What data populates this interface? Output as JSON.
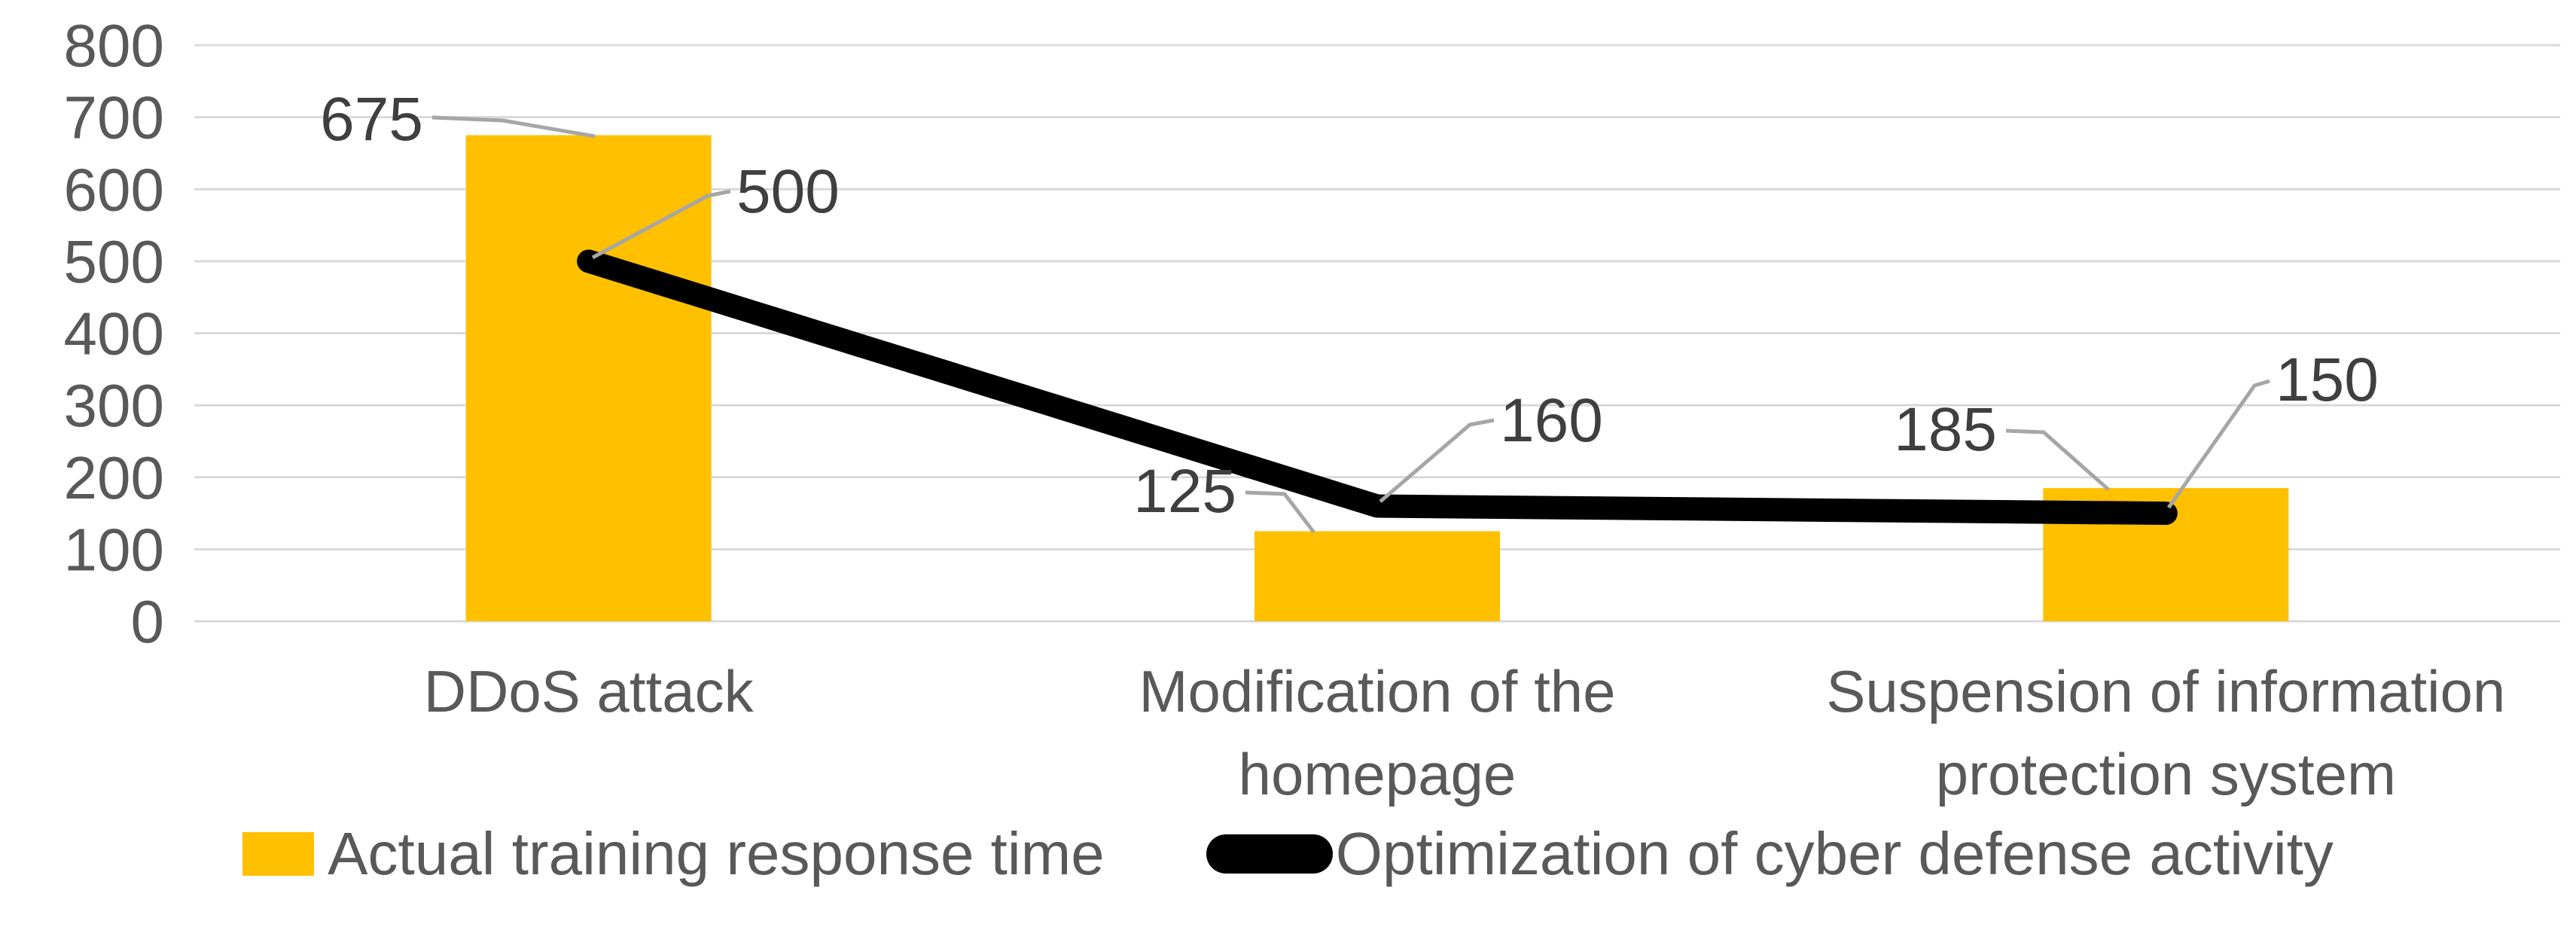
{
  "chart_data": {
    "type": "combo-bar-line",
    "title": "",
    "xlabel": "",
    "ylabel": "",
    "categories": [
      "DDoS attack",
      "Modification of the homepage",
      "Suspension of information protection system"
    ],
    "category_label_lines": [
      [
        "DDoS attack"
      ],
      [
        "Modification of the",
        "homepage"
      ],
      [
        "Suspension of information",
        "protection system"
      ]
    ],
    "series": [
      {
        "name": "Actual training response time",
        "type": "bar",
        "color": "#FFC000",
        "values": [
          675,
          125,
          185
        ]
      },
      {
        "name": "Optimization of cyber defense activity",
        "type": "line",
        "color": "#000000",
        "values": [
          500,
          160,
          150
        ]
      }
    ],
    "y_axis": {
      "min": 0,
      "max": 800,
      "tick_interval": 100,
      "tick_labels": [
        "800",
        "700",
        "600",
        "500",
        "400",
        "300",
        "200",
        "100",
        "0"
      ]
    },
    "grid": {
      "visible": true,
      "color": "#D9D9D9"
    },
    "legend": {
      "position": "bottom",
      "entries": [
        "Actual training response time",
        "Optimization of cyber defense activity"
      ]
    },
    "data_labels": {
      "visible": true,
      "bar": [
        "675",
        "125",
        "185"
      ],
      "line": [
        "500",
        "160",
        "150"
      ]
    },
    "colors": {
      "bar_fill": "#FFC000",
      "line_stroke": "#000000",
      "gridline": "#D9D9D9",
      "axis_text": "#595959",
      "category_text": "#595959",
      "data_label_text": "#3F3F3F",
      "leader_line": "#A6A6A6",
      "background": "#FFFFFF"
    }
  }
}
